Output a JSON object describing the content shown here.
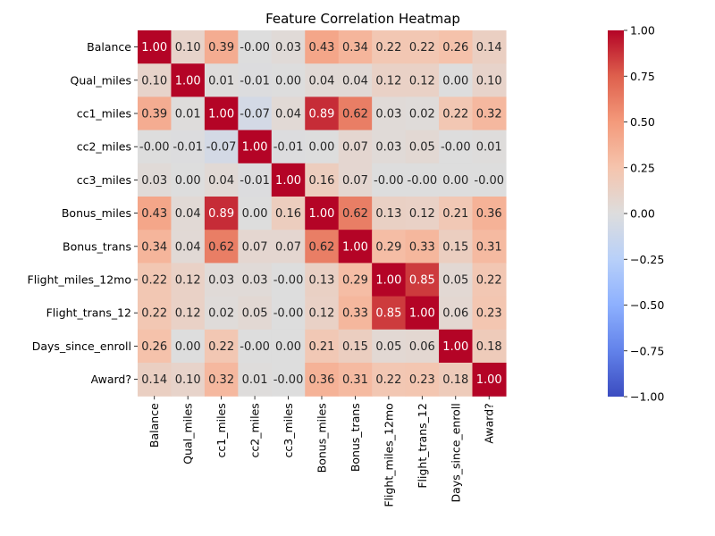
{
  "chart_data": {
    "type": "heatmap",
    "title": "Feature Correlation Heatmap",
    "xlabel": "",
    "ylabel": "",
    "labels": [
      "Balance",
      "Qual_miles",
      "cc1_miles",
      "cc2_miles",
      "cc3_miles",
      "Bonus_miles",
      "Bonus_trans",
      "Flight_miles_12mo",
      "Flight_trans_12",
      "Days_since_enroll",
      "Award?"
    ],
    "matrix": [
      [
        1.0,
        0.1,
        0.39,
        -0.0,
        0.03,
        0.43,
        0.34,
        0.22,
        0.22,
        0.26,
        0.14
      ],
      [
        0.1,
        1.0,
        0.01,
        -0.01,
        0.0,
        0.04,
        0.04,
        0.12,
        0.12,
        0.0,
        0.1
      ],
      [
        0.39,
        0.01,
        1.0,
        -0.07,
        0.04,
        0.89,
        0.62,
        0.03,
        0.02,
        0.22,
        0.32
      ],
      [
        -0.0,
        -0.01,
        -0.07,
        1.0,
        -0.01,
        0.0,
        0.07,
        0.03,
        0.05,
        -0.0,
        0.01
      ],
      [
        0.03,
        0.0,
        0.04,
        -0.01,
        1.0,
        0.16,
        0.07,
        -0.0,
        -0.0,
        0.0,
        -0.0
      ],
      [
        0.43,
        0.04,
        0.89,
        0.0,
        0.16,
        1.0,
        0.62,
        0.13,
        0.12,
        0.21,
        0.36
      ],
      [
        0.34,
        0.04,
        0.62,
        0.07,
        0.07,
        0.62,
        1.0,
        0.29,
        0.33,
        0.15,
        0.31
      ],
      [
        0.22,
        0.12,
        0.03,
        0.03,
        -0.0,
        0.13,
        0.29,
        1.0,
        0.85,
        0.05,
        0.22
      ],
      [
        0.22,
        0.12,
        0.02,
        0.05,
        -0.0,
        0.12,
        0.33,
        0.85,
        1.0,
        0.06,
        0.23
      ],
      [
        0.26,
        0.0,
        0.22,
        -0.0,
        0.0,
        0.21,
        0.15,
        0.05,
        0.06,
        1.0,
        0.18
      ],
      [
        0.14,
        0.1,
        0.32,
        0.01,
        -0.0,
        0.36,
        0.31,
        0.22,
        0.23,
        0.18,
        1.0
      ]
    ],
    "colormap": "coolwarm",
    "vmin": -1.0,
    "vmax": 1.0,
    "colorbar_ticks": [
      "1.00",
      "0.75",
      "0.50",
      "0.25",
      "0.00",
      "−0.25",
      "−0.50",
      "−0.75",
      "−1.00"
    ],
    "colorbar_tick_values": [
      1.0,
      0.75,
      0.5,
      0.25,
      0.0,
      -0.25,
      -0.5,
      -0.75,
      -1.0
    ]
  }
}
